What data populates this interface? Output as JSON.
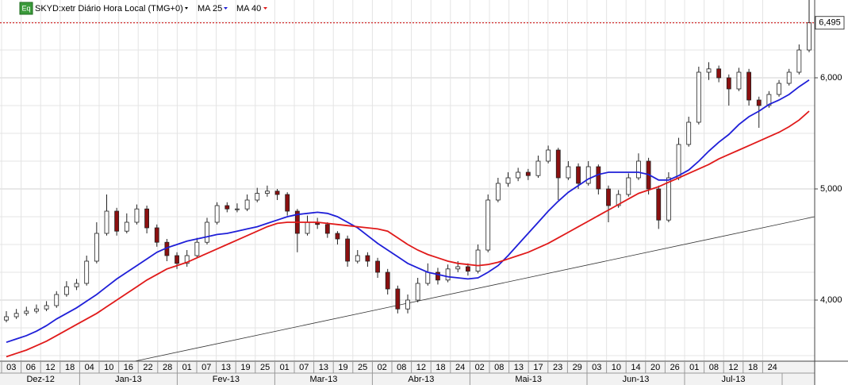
{
  "chart_data": {
    "type": "candlestick",
    "series": [
      {
        "name": "SKYD:xetr Diário Hora Local (TMG+0)",
        "type": "candlestick",
        "up_color": "#ffffff",
        "down_color": "#8b1010",
        "values": [
          [
            3820,
            3900,
            3800,
            3850
          ],
          [
            3850,
            3920,
            3830,
            3880
          ],
          [
            3880,
            3940,
            3860,
            3900
          ],
          [
            3900,
            3960,
            3880,
            3920
          ],
          [
            3920,
            3990,
            3900,
            3950
          ],
          [
            3950,
            4080,
            3930,
            4050
          ],
          [
            4050,
            4170,
            4030,
            4120
          ],
          [
            4120,
            4190,
            4090,
            4150
          ],
          [
            4150,
            4400,
            4130,
            4350
          ],
          [
            4350,
            4700,
            4330,
            4600
          ],
          [
            4600,
            4950,
            4580,
            4800
          ],
          [
            4800,
            4830,
            4580,
            4620
          ],
          [
            4620,
            4780,
            4600,
            4700
          ],
          [
            4700,
            4860,
            4680,
            4820
          ],
          [
            4820,
            4850,
            4600,
            4650
          ],
          [
            4650,
            4680,
            4480,
            4520
          ],
          [
            4520,
            4550,
            4350,
            4400
          ],
          [
            4400,
            4430,
            4280,
            4330
          ],
          [
            4330,
            4450,
            4300,
            4400
          ],
          [
            4400,
            4560,
            4380,
            4520
          ],
          [
            4520,
            4740,
            4500,
            4700
          ],
          [
            4700,
            4880,
            4680,
            4850
          ],
          [
            4850,
            4880,
            4790,
            4820
          ],
          [
            4820,
            4870,
            4790,
            4820
          ],
          [
            4820,
            4950,
            4800,
            4900
          ],
          [
            4900,
            5010,
            4880,
            4960
          ],
          [
            4960,
            5030,
            4930,
            4980
          ],
          [
            4980,
            5000,
            4900,
            4950
          ],
          [
            4950,
            4970,
            4760,
            4800
          ],
          [
            4800,
            4820,
            4430,
            4600
          ],
          [
            4600,
            4760,
            4580,
            4700
          ],
          [
            4700,
            4740,
            4640,
            4680
          ],
          [
            4680,
            4700,
            4560,
            4600
          ],
          [
            4600,
            4620,
            4500,
            4550
          ],
          [
            4550,
            4580,
            4300,
            4350
          ],
          [
            4350,
            4450,
            4330,
            4400
          ],
          [
            4400,
            4430,
            4300,
            4350
          ],
          [
            4350,
            4380,
            4200,
            4250
          ],
          [
            4250,
            4280,
            4050,
            4100
          ],
          [
            4100,
            4130,
            3880,
            3920
          ],
          [
            3920,
            4050,
            3880,
            4000
          ],
          [
            4000,
            4200,
            3980,
            4150
          ],
          [
            4150,
            4330,
            4130,
            4250
          ],
          [
            4250,
            4290,
            4140,
            4180
          ],
          [
            4180,
            4320,
            4160,
            4280
          ],
          [
            4280,
            4350,
            4250,
            4300
          ],
          [
            4300,
            4330,
            4220,
            4260
          ],
          [
            4260,
            4500,
            4240,
            4450
          ],
          [
            4450,
            4950,
            4430,
            4900
          ],
          [
            4900,
            5100,
            4880,
            5050
          ],
          [
            5050,
            5150,
            5020,
            5100
          ],
          [
            5100,
            5190,
            5070,
            5150
          ],
          [
            5150,
            5180,
            5080,
            5120
          ],
          [
            5120,
            5300,
            5100,
            5250
          ],
          [
            5250,
            5390,
            5230,
            5350
          ],
          [
            5350,
            5370,
            4900,
            5100
          ],
          [
            5100,
            5250,
            5080,
            5200
          ],
          [
            5200,
            5230,
            5000,
            5050
          ],
          [
            5050,
            5250,
            5030,
            5200
          ],
          [
            5200,
            5220,
            4950,
            5000
          ],
          [
            5000,
            5030,
            4700,
            4850
          ],
          [
            4850,
            4990,
            4830,
            4950
          ],
          [
            4950,
            5140,
            4930,
            5100
          ],
          [
            5100,
            5320,
            5080,
            5250
          ],
          [
            5250,
            5280,
            4950,
            5000
          ],
          [
            5000,
            5030,
            4640,
            4720
          ],
          [
            4720,
            5150,
            4700,
            5100
          ],
          [
            5100,
            5460,
            5080,
            5400
          ],
          [
            5400,
            5650,
            5380,
            5600
          ],
          [
            5600,
            6100,
            5580,
            6050
          ],
          [
            6050,
            6140,
            5980,
            6080
          ],
          [
            6080,
            6110,
            5960,
            6000
          ],
          [
            6000,
            6030,
            5750,
            5900
          ],
          [
            5900,
            6090,
            5880,
            6050
          ],
          [
            6050,
            6080,
            5750,
            5800
          ],
          [
            5800,
            5830,
            5550,
            5750
          ],
          [
            5750,
            5880,
            5730,
            5850
          ],
          [
            5850,
            5980,
            5830,
            5950
          ],
          [
            5950,
            6080,
            5930,
            6050
          ],
          [
            6050,
            6300,
            6030,
            6250
          ],
          [
            6250,
            6700,
            6230,
            6495
          ]
        ]
      },
      {
        "name": "MA 25",
        "type": "line",
        "color": "#1f1fd8",
        "values": [
          3620,
          3650,
          3680,
          3720,
          3770,
          3830,
          3880,
          3930,
          3990,
          4050,
          4120,
          4190,
          4250,
          4310,
          4370,
          4430,
          4470,
          4500,
          4530,
          4550,
          4570,
          4590,
          4600,
          4620,
          4640,
          4660,
          4690,
          4720,
          4750,
          4770,
          4780,
          4790,
          4780,
          4750,
          4700,
          4650,
          4580,
          4510,
          4450,
          4390,
          4330,
          4290,
          4250,
          4230,
          4210,
          4200,
          4190,
          4200,
          4250,
          4310,
          4400,
          4500,
          4600,
          4700,
          4800,
          4890,
          4970,
          5030,
          5090,
          5130,
          5150,
          5150,
          5150,
          5150,
          5130,
          5080,
          5080,
          5120,
          5170,
          5250,
          5340,
          5420,
          5490,
          5580,
          5650,
          5700,
          5760,
          5800,
          5850,
          5920,
          5980
        ]
      },
      {
        "name": "MA 40",
        "type": "line",
        "color": "#e01a1a",
        "values": [
          3490,
          3520,
          3550,
          3590,
          3630,
          3680,
          3730,
          3780,
          3830,
          3880,
          3940,
          4000,
          4060,
          4120,
          4180,
          4230,
          4280,
          4310,
          4340,
          4380,
          4420,
          4460,
          4500,
          4540,
          4580,
          4620,
          4660,
          4690,
          4700,
          4700,
          4700,
          4700,
          4690,
          4680,
          4670,
          4660,
          4650,
          4640,
          4620,
          4560,
          4500,
          4450,
          4410,
          4380,
          4350,
          4330,
          4320,
          4310,
          4320,
          4340,
          4370,
          4400,
          4430,
          4470,
          4510,
          4560,
          4610,
          4660,
          4710,
          4760,
          4810,
          4860,
          4910,
          4960,
          4990,
          5020,
          5060,
          5100,
          5140,
          5180,
          5220,
          5270,
          5310,
          5350,
          5390,
          5430,
          5470,
          5510,
          5560,
          5620,
          5700
        ]
      }
    ],
    "last_price": {
      "value": 6495,
      "label": "6,495"
    },
    "ylim": [
      3450,
      6700
    ],
    "yticks": [
      {
        "value": 4000,
        "label": "4,000"
      },
      {
        "value": 5000,
        "label": "5,000"
      },
      {
        "value": 6000,
        "label": "6,000"
      }
    ],
    "y_minor_ticks": [
      3500,
      3750,
      4250,
      4500,
      4750,
      5250,
      5500,
      5750,
      6250,
      6500
    ],
    "grid": true,
    "x_axis": [
      {
        "month": "Dez-12",
        "days": [
          "03",
          "06",
          "12",
          "18"
        ]
      },
      {
        "month": "Jan-13",
        "days": [
          "04",
          "10",
          "16",
          "22",
          "28"
        ]
      },
      {
        "month": "Fev-13",
        "days": [
          "01",
          "07",
          "13",
          "19",
          "25"
        ]
      },
      {
        "month": "Mar-13",
        "days": [
          "01",
          "07",
          "13",
          "19",
          "25"
        ]
      },
      {
        "month": "Abr-13",
        "days": [
          "02",
          "08",
          "12",
          "18",
          "24"
        ]
      },
      {
        "month": "Mai-13",
        "days": [
          "02",
          "08",
          "13",
          "17",
          "23",
          "29"
        ]
      },
      {
        "month": "Jun-13",
        "days": [
          "03",
          "10",
          "14",
          "20",
          "26"
        ]
      },
      {
        "month": "Jul-13",
        "days": [
          "01",
          "08",
          "12",
          "18",
          "24"
        ]
      }
    ]
  }
}
